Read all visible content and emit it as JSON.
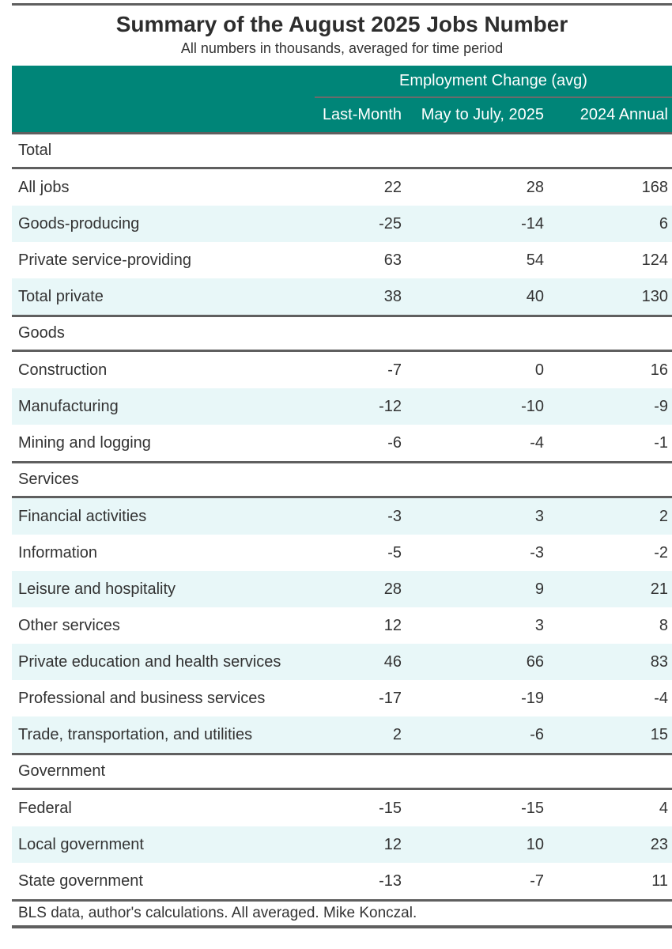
{
  "header": {
    "title": "Summary of the August 2025 Jobs Number",
    "subtitle": "All numbers in thousands, averaged for time period",
    "spanner": "Employment Change (avg)",
    "columns": [
      "Last-Month",
      "May to July, 2025",
      "2024 Annual"
    ]
  },
  "footer": {
    "source_note": "BLS data, author's calculations. All averaged. Mike Konczal."
  },
  "colors": {
    "header_teal": "#008578",
    "stripe": "#e8f7f8",
    "border_dark": "#5f5f5f",
    "text": "#333333",
    "header_text": "#ffffff",
    "spanner_underline": "#6b6b6b"
  },
  "chart_data": {
    "type": "table",
    "title": "Summary of the August 2025 Jobs Number",
    "subtitle": "All numbers in thousands, averaged for time period",
    "units": "thousands of jobs",
    "column_spanner": "Employment Change (avg)",
    "columns": [
      "Last-Month",
      "May to July, 2025",
      "2024 Annual"
    ],
    "sections": [
      {
        "group": "Total",
        "rows": [
          {
            "label": "All jobs",
            "values": [
              22,
              28,
              168
            ]
          },
          {
            "label": "Goods-producing",
            "values": [
              -25,
              -14,
              6
            ]
          },
          {
            "label": "Private service-providing",
            "values": [
              63,
              54,
              124
            ]
          },
          {
            "label": "Total private",
            "values": [
              38,
              40,
              130
            ]
          }
        ]
      },
      {
        "group": "Goods",
        "rows": [
          {
            "label": "Construction",
            "values": [
              -7,
              0,
              16
            ]
          },
          {
            "label": "Manufacturing",
            "values": [
              -12,
              -10,
              -9
            ]
          },
          {
            "label": "Mining and logging",
            "values": [
              -6,
              -4,
              -1
            ]
          }
        ]
      },
      {
        "group": "Services",
        "rows": [
          {
            "label": "Financial activities",
            "values": [
              -3,
              3,
              2
            ]
          },
          {
            "label": "Information",
            "values": [
              -5,
              -3,
              -2
            ]
          },
          {
            "label": "Leisure and hospitality",
            "values": [
              28,
              9,
              21
            ]
          },
          {
            "label": "Other services",
            "values": [
              12,
              3,
              8
            ]
          },
          {
            "label": "Private education and health services",
            "values": [
              46,
              66,
              83
            ]
          },
          {
            "label": "Professional and business services",
            "values": [
              -17,
              -19,
              -4
            ]
          },
          {
            "label": "Trade, transportation, and utilities",
            "values": [
              2,
              -6,
              15
            ]
          }
        ]
      },
      {
        "group": "Government",
        "rows": [
          {
            "label": "Federal",
            "values": [
              -15,
              -15,
              4
            ]
          },
          {
            "label": "Local government",
            "values": [
              12,
              10,
              23
            ]
          },
          {
            "label": "State government",
            "values": [
              -13,
              -7,
              11
            ]
          }
        ]
      }
    ],
    "source_note": "BLS data, author's calculations. All averaged. Mike Konczal."
  }
}
